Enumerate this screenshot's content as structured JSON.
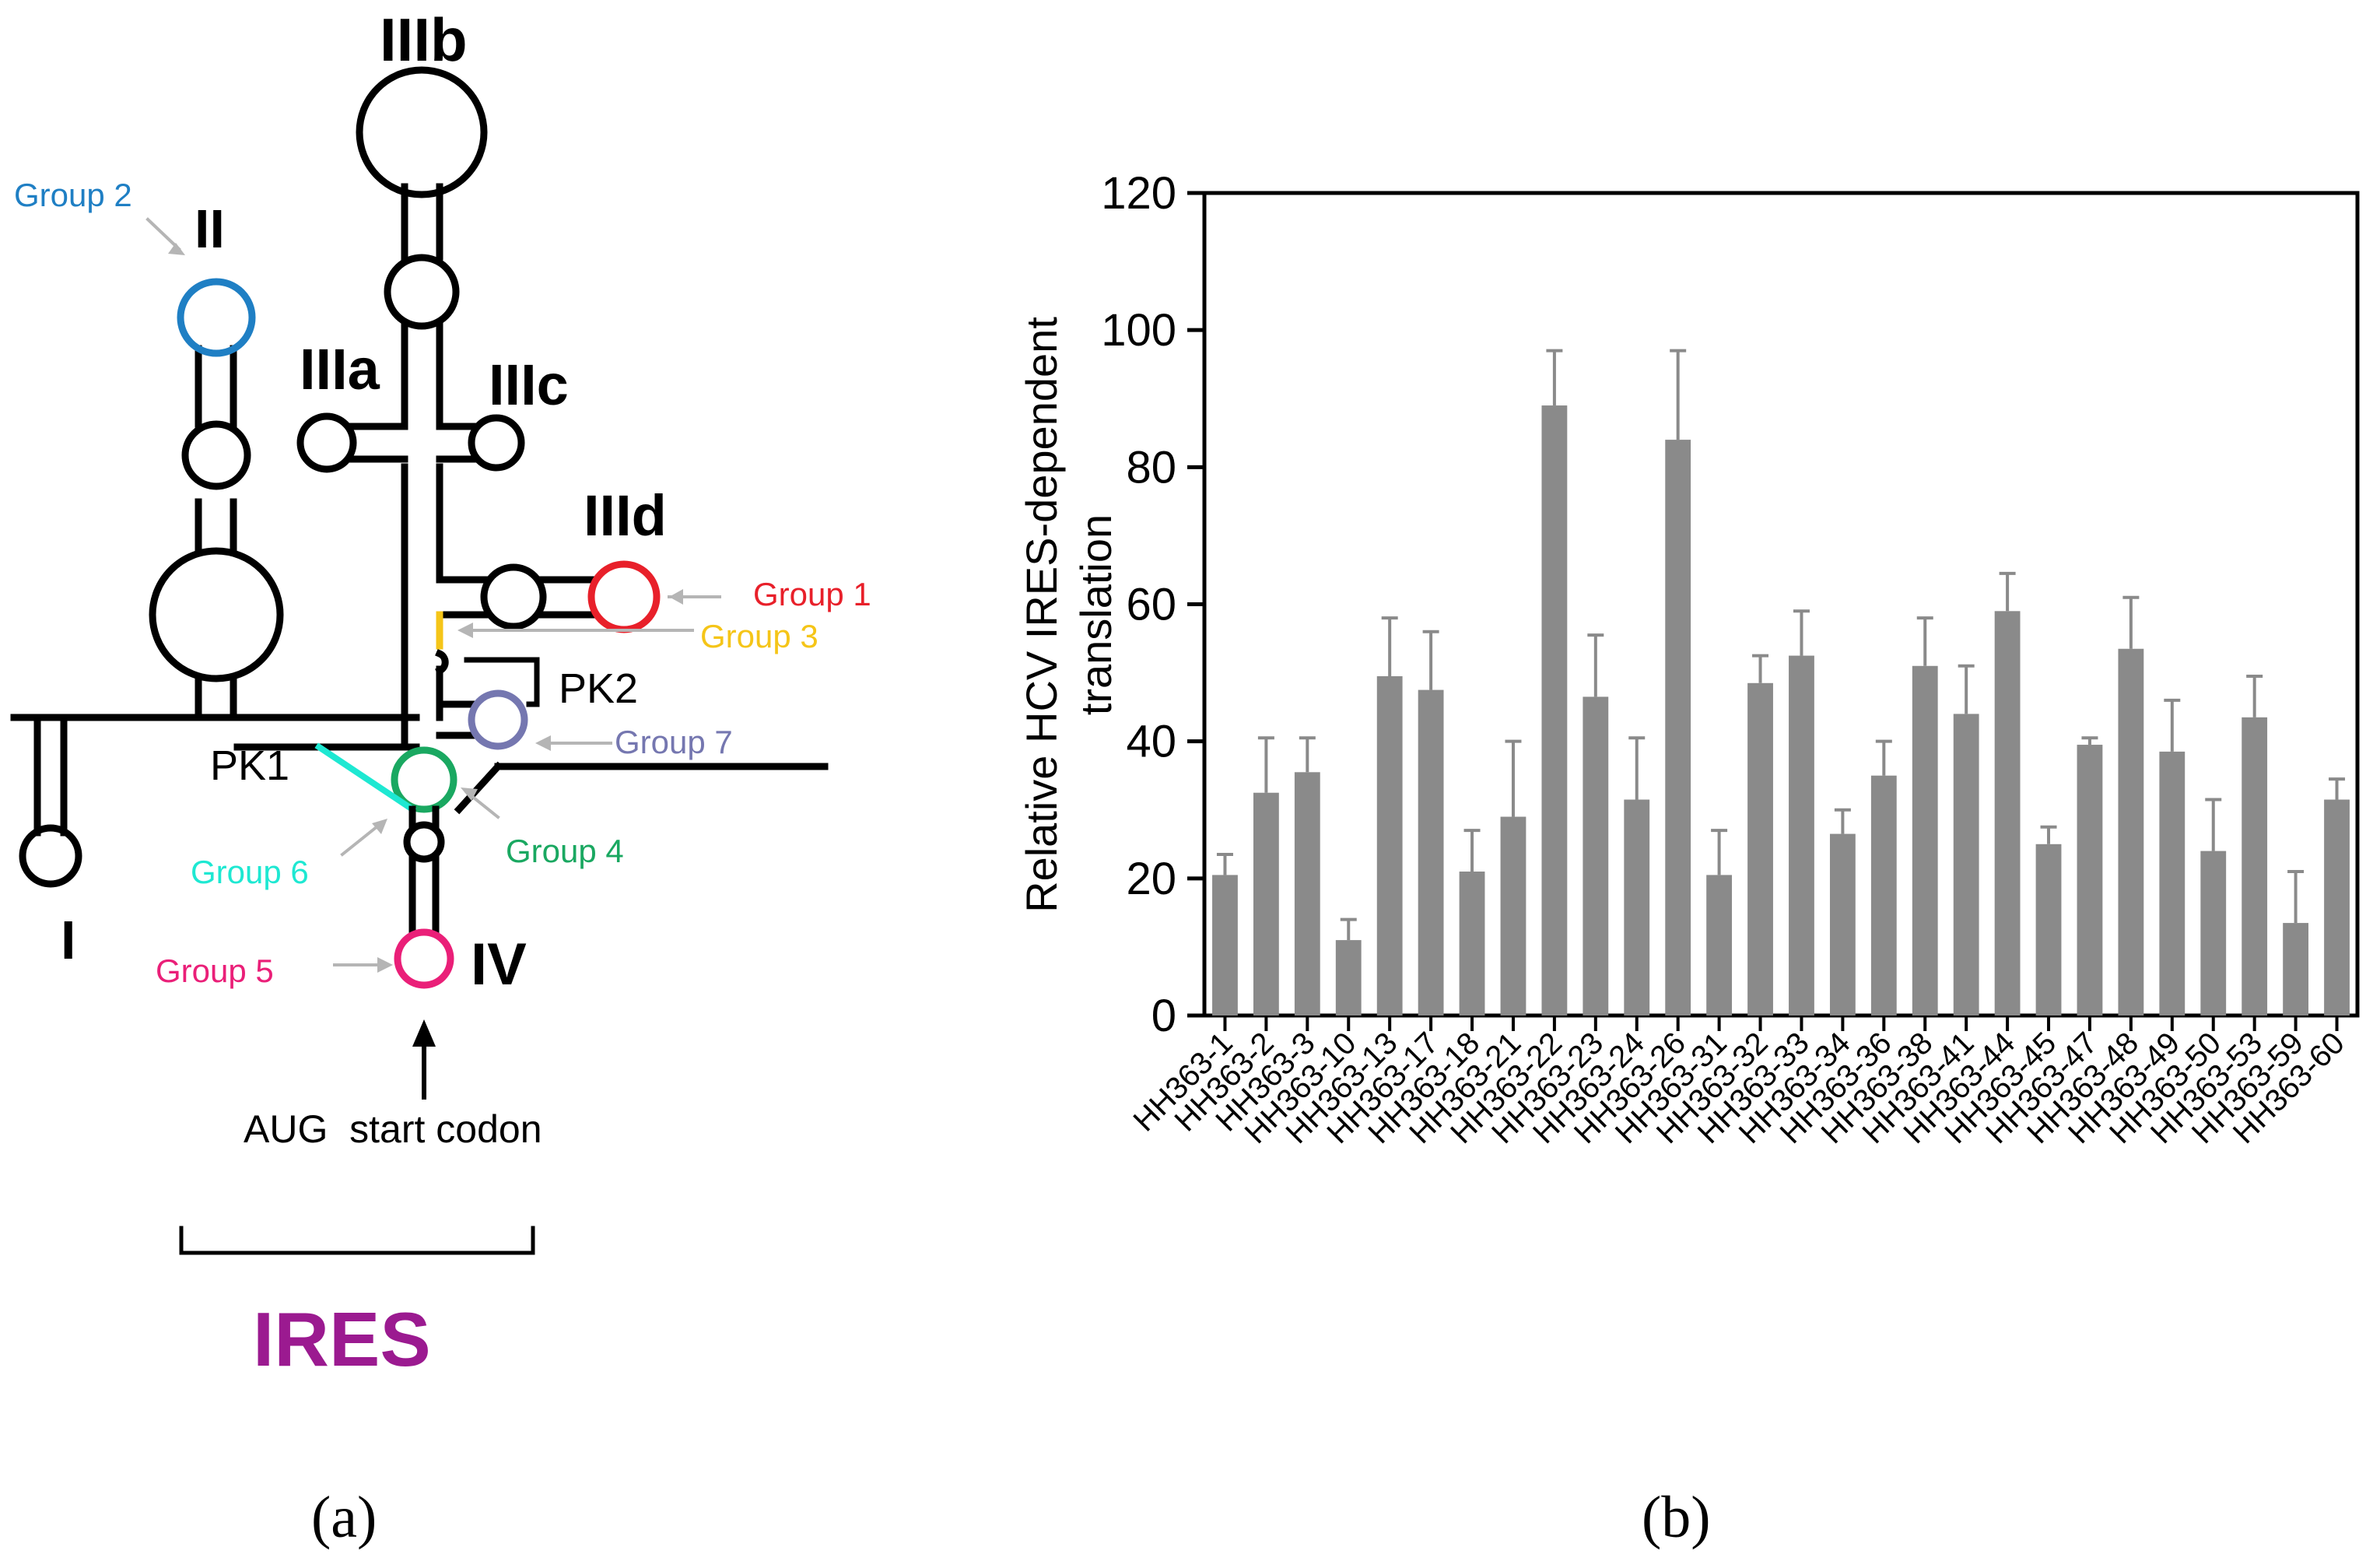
{
  "diagram": {
    "domain_labels": {
      "I": "I",
      "II": "II",
      "IIIa": "IIIa",
      "IIIb": "IIIb",
      "IIIc": "IIIc",
      "IIId": "IIId",
      "IV": "IV"
    },
    "pseudoknots": {
      "pk1": "PK1",
      "pk2": "PK2"
    },
    "groups": [
      {
        "label": "Group 1",
        "color": "#e8202a"
      },
      {
        "label": "Group 2",
        "color": "#1f7fc4"
      },
      {
        "label": "Group 3",
        "color": "#f5c518"
      },
      {
        "label": "Group 4",
        "color": "#1aa861"
      },
      {
        "label": "Group 5",
        "color": "#ea1f78"
      },
      {
        "label": "Group 6",
        "color": "#1ee8d2"
      },
      {
        "label": "Group 7",
        "color": "#7577b0"
      }
    ],
    "start_codon_label": "AUG  start codon",
    "ires_label": "IRES",
    "ires_color": "#9b1a90",
    "panel_label": "(a)"
  },
  "chart_data": {
    "type": "bar",
    "title": "",
    "xlabel": "",
    "ylabel": "Relative HCV IRES-dependent translation",
    "ylabel_lines": [
      "Relative HCV IRES-dependent",
      "translation"
    ],
    "ylim": [
      0,
      120
    ],
    "yticks": [
      0,
      20,
      40,
      60,
      80,
      100,
      120
    ],
    "bar_color": "#8a8a8a",
    "categories": [
      "HH363-1",
      "HH363-2",
      "HH363-3",
      "HH363-10",
      "HH363-13",
      "HH363-17",
      "HH363-18",
      "HH363-21",
      "HH363-22",
      "HH363-23",
      "HH363-24",
      "HH363-26",
      "HH363-31",
      "HH363-32",
      "HH363-33",
      "HH363-34",
      "HH363-36",
      "HH363-38",
      "HH363-41",
      "HH363-44",
      "HH363-45",
      "HH363-47",
      "HH363-48",
      "HH363-49",
      "HH363-50",
      "HH363-53",
      "HH363-59",
      "HH363-60"
    ],
    "values": [
      20.5,
      32.5,
      35.5,
      11,
      49.5,
      47.5,
      21,
      29,
      89,
      46.5,
      31.5,
      84,
      20.5,
      48.5,
      52.5,
      26.5,
      35,
      51,
      44,
      59,
      25,
      39.5,
      53.5,
      38.5,
      24,
      43.5,
      13.5,
      31.5
    ],
    "errors": [
      3,
      8,
      5,
      3,
      8.5,
      8.5,
      6,
      11,
      8,
      9,
      9,
      13,
      6.5,
      4,
      6.5,
      3.5,
      5,
      7,
      7,
      5.5,
      2.5,
      1,
      7.5,
      7.5,
      7.5,
      6,
      7.5,
      3
    ],
    "panel_label": "(b)"
  }
}
